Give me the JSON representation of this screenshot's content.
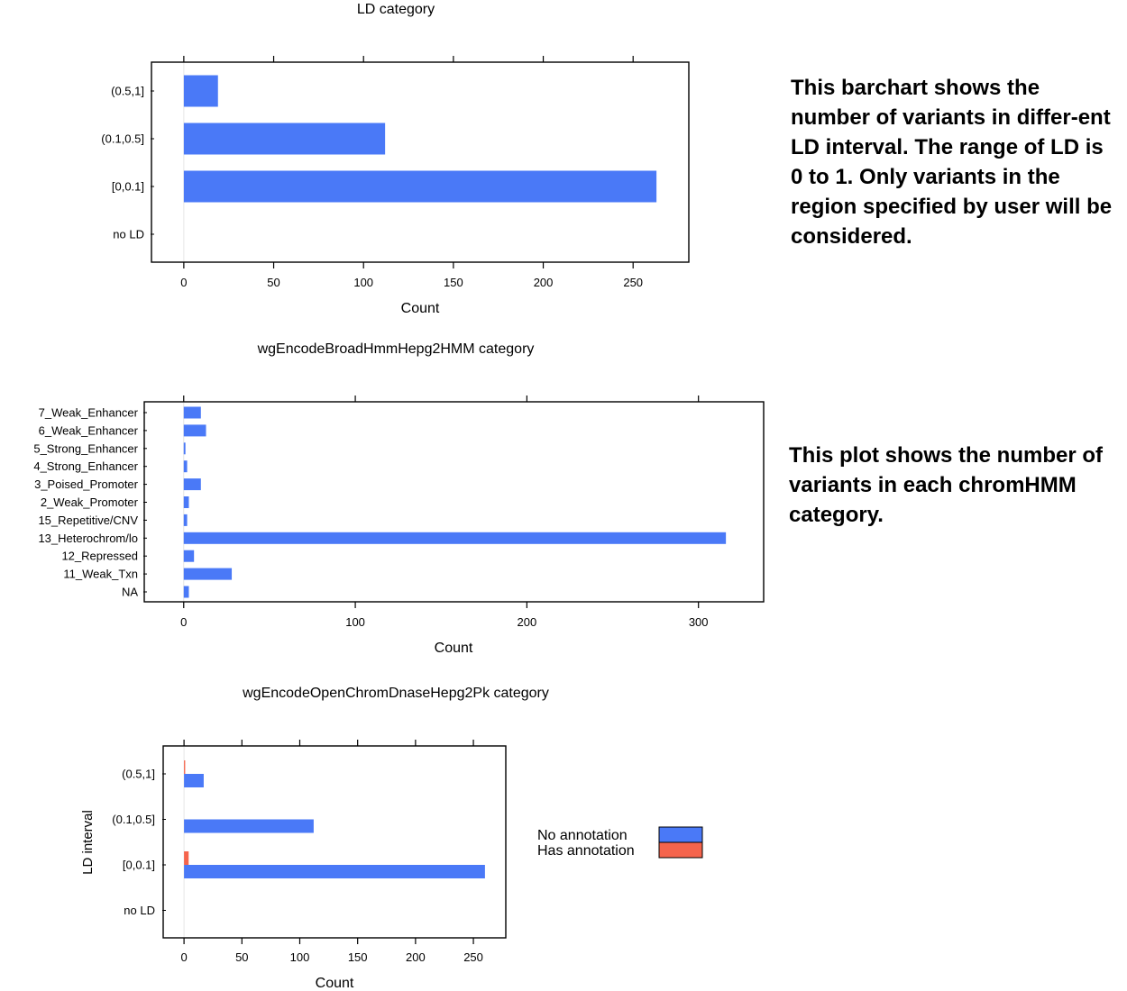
{
  "colors": {
    "no_annotation": "#4a79f7",
    "has_annotation": "#f5644c",
    "axis": "#000000",
    "zero_line": "#e6e6e6"
  },
  "descriptions": {
    "ld": "This barchart shows the number of variants in differ-ent LD interval. The range of LD is 0 to 1. Only variants in the region specified by user will be considered.",
    "hmm": "This plot shows the number of variants in each chromHMM category."
  },
  "chart_data": [
    {
      "type": "bar",
      "orientation": "horizontal",
      "title": "LD category",
      "xlabel": "Count",
      "ylabel": "",
      "categories": [
        "(0.5,1]",
        "(0.1,0.5]",
        "[0,0.1]",
        "no LD"
      ],
      "series": [
        {
          "values": [
            19,
            112,
            263,
            0
          ]
        }
      ],
      "xlim": [
        -18,
        281
      ],
      "xticks": [
        0,
        50,
        100,
        150,
        200,
        250
      ],
      "grid": false
    },
    {
      "type": "bar",
      "orientation": "horizontal",
      "title": "wgEncodeBroadHmmHepg2HMM category",
      "xlabel": "Count",
      "ylabel": "",
      "categories": [
        "7_Weak_Enhancer",
        "6_Weak_Enhancer",
        "5_Strong_Enhancer",
        "4_Strong_Enhancer",
        "3_Poised_Promoter",
        "2_Weak_Promoter",
        "15_Repetitive/CNV",
        "13_Heterochrom/lo",
        "12_Repressed",
        "11_Weak_Txn",
        "NA"
      ],
      "series": [
        {
          "values": [
            10,
            13,
            1,
            2,
            10,
            3,
            2,
            316,
            6,
            28,
            3
          ]
        }
      ],
      "xlim": [
        -23,
        338
      ],
      "xticks": [
        0,
        100,
        200,
        300
      ],
      "grid": false
    },
    {
      "type": "bar",
      "orientation": "horizontal",
      "title": "wgEncodeOpenChromDnaseHepg2Pk category",
      "xlabel": "Count",
      "ylabel": "LD interval",
      "categories": [
        "(0.5,1]",
        "(0.1,0.5]",
        "[0,0.1]",
        "no LD"
      ],
      "series": [
        {
          "name": "No annotation",
          "values": [
            17,
            112,
            260,
            0
          ]
        },
        {
          "name": "Has annotation",
          "values": [
            1,
            0,
            4,
            0
          ]
        }
      ],
      "xlim": [
        -18,
        278
      ],
      "xticks": [
        0,
        50,
        100,
        150,
        200,
        250
      ],
      "legend": "right",
      "grid": false
    }
  ]
}
